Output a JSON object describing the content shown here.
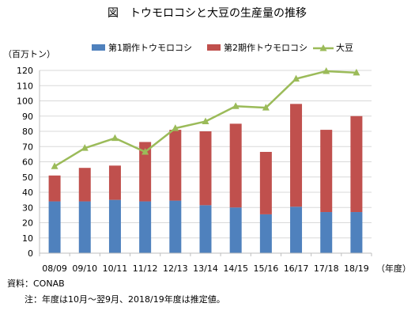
{
  "chart_data": {
    "type": "bar",
    "title": "図　トウモロコシと大豆の生産量の推移",
    "ylabel": "（百万トン）",
    "xlabel": "（年度）",
    "categories": [
      "08/09",
      "09/10",
      "10/11",
      "11/12",
      "12/13",
      "13/14",
      "14/15",
      "15/16",
      "16/17",
      "17/18",
      "18/19"
    ],
    "ylim": [
      0,
      120
    ],
    "yticks": [
      0,
      10,
      20,
      30,
      40,
      50,
      60,
      70,
      80,
      90,
      100,
      110,
      120
    ],
    "stacked": true,
    "grid": true,
    "legend_position": "top",
    "series": [
      {
        "name": "第1期作トウモロコシ",
        "type": "bar",
        "color": "#4f81bd",
        "values": [
          34,
          34,
          35,
          34,
          34.5,
          31.5,
          30,
          25.5,
          30.5,
          27,
          27
        ]
      },
      {
        "name": "第2期作トウモロコシ",
        "type": "bar",
        "color": "#c0504d",
        "values": [
          17,
          22,
          22.5,
          39,
          46.5,
          48.5,
          55,
          41,
          67.5,
          54,
          63
        ]
      },
      {
        "name": "大豆",
        "type": "line",
        "color": "#9bbb59",
        "values": [
          57,
          69,
          75.5,
          66.5,
          82,
          86.5,
          96.5,
          95.5,
          114.5,
          119.5,
          118.5
        ]
      }
    ]
  },
  "notes": {
    "source": "資料：CONAB",
    "footnote": "注：年度は10月～翌9月、2018/19年度は推定値。"
  }
}
